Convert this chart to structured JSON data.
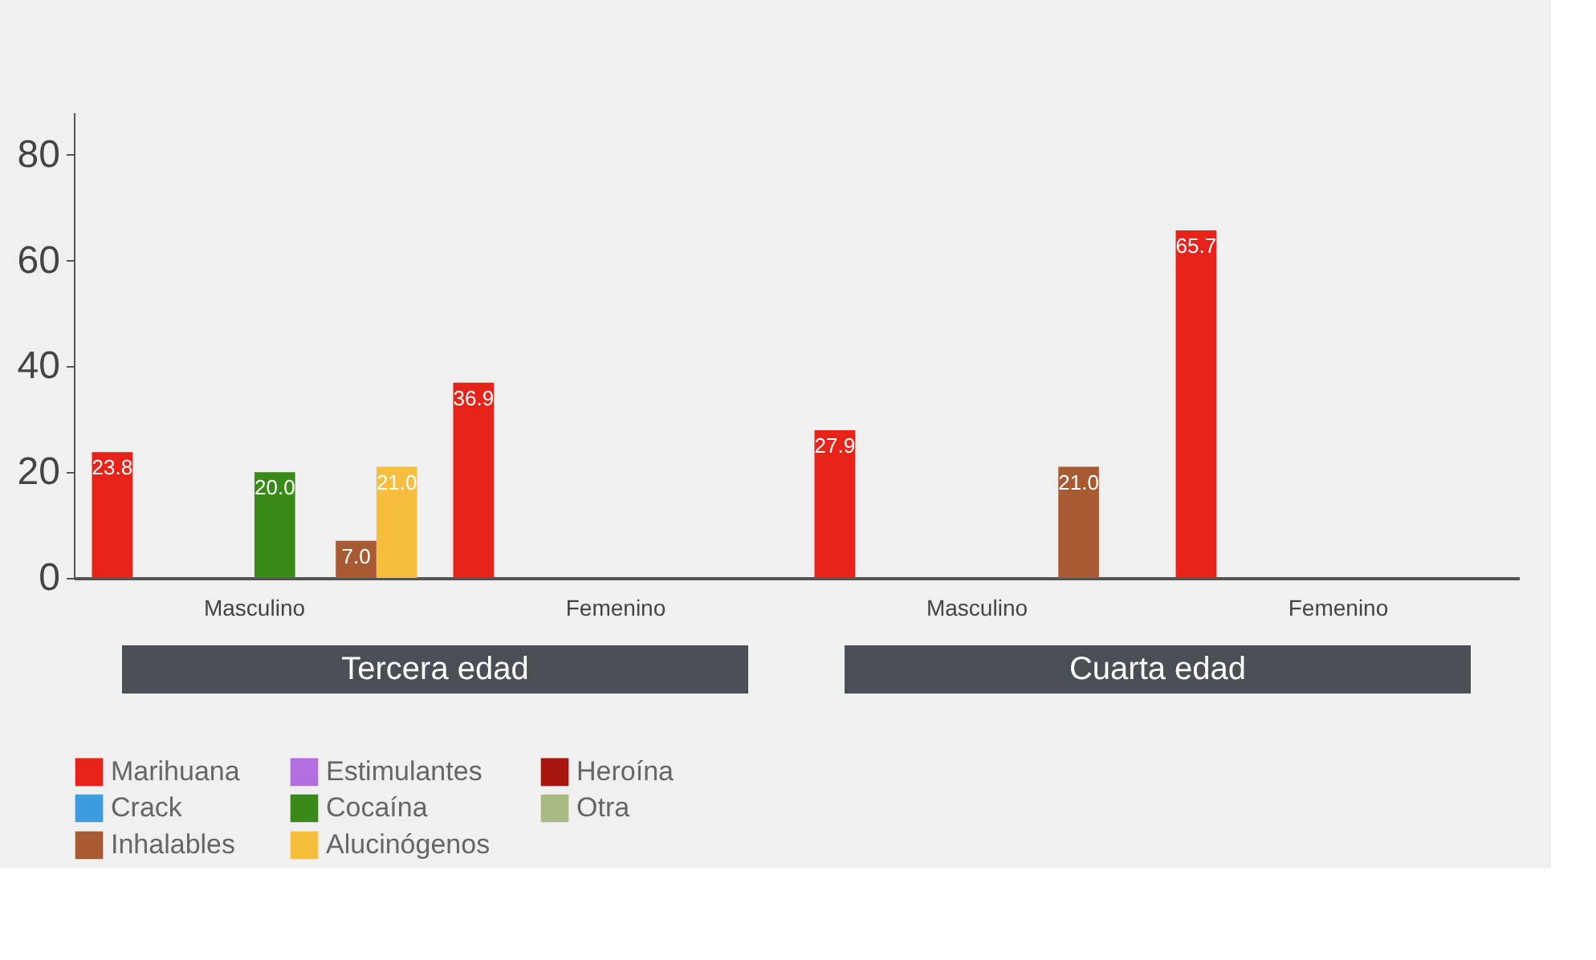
{
  "chart_data": {
    "type": "bar",
    "categories": [
      "Masculino",
      "Femenino",
      "Masculino",
      "Femenino"
    ],
    "series": [
      {
        "name": "Marihuana",
        "color": "#e8231a",
        "values": [
          23.8,
          36.9,
          27.9,
          65.7
        ],
        "value_labels": [
          "23.8",
          "36.9",
          "27.9",
          "65.7"
        ]
      },
      {
        "name": "Estimulantes",
        "color": "#b36ee0",
        "values": [
          null,
          null,
          null,
          null
        ]
      },
      {
        "name": "Heroína",
        "color": "#a8170f",
        "values": [
          null,
          null,
          null,
          null
        ]
      },
      {
        "name": "Crack",
        "color": "#3d9be0",
        "values": [
          null,
          null,
          null,
          null
        ]
      },
      {
        "name": "Cocaína",
        "color": "#3a8a1a",
        "values": [
          20.0,
          null,
          null,
          null
        ],
        "value_labels": [
          "20.0",
          null,
          null,
          null
        ]
      },
      {
        "name": "Otra",
        "color": "#a9bb84",
        "values": [
          null,
          null,
          null,
          null
        ]
      },
      {
        "name": "Inhalables",
        "color": "#a85a32",
        "values": [
          7.0,
          null,
          21.0,
          null
        ],
        "value_labels": [
          "7.0",
          null,
          "21.0",
          null
        ]
      },
      {
        "name": "Alucinógenos",
        "color": "#f7bd3c",
        "values": [
          21.0,
          null,
          null,
          null
        ],
        "value_labels": [
          "21.0",
          null,
          null,
          null
        ]
      }
    ],
    "annotations": [
      "Tercera edad",
      "Cuarta edad"
    ],
    "ylim": [
      0,
      88
    ],
    "yticks": [
      0,
      20,
      40,
      60,
      80
    ],
    "grid": false,
    "legend": "bottom"
  }
}
